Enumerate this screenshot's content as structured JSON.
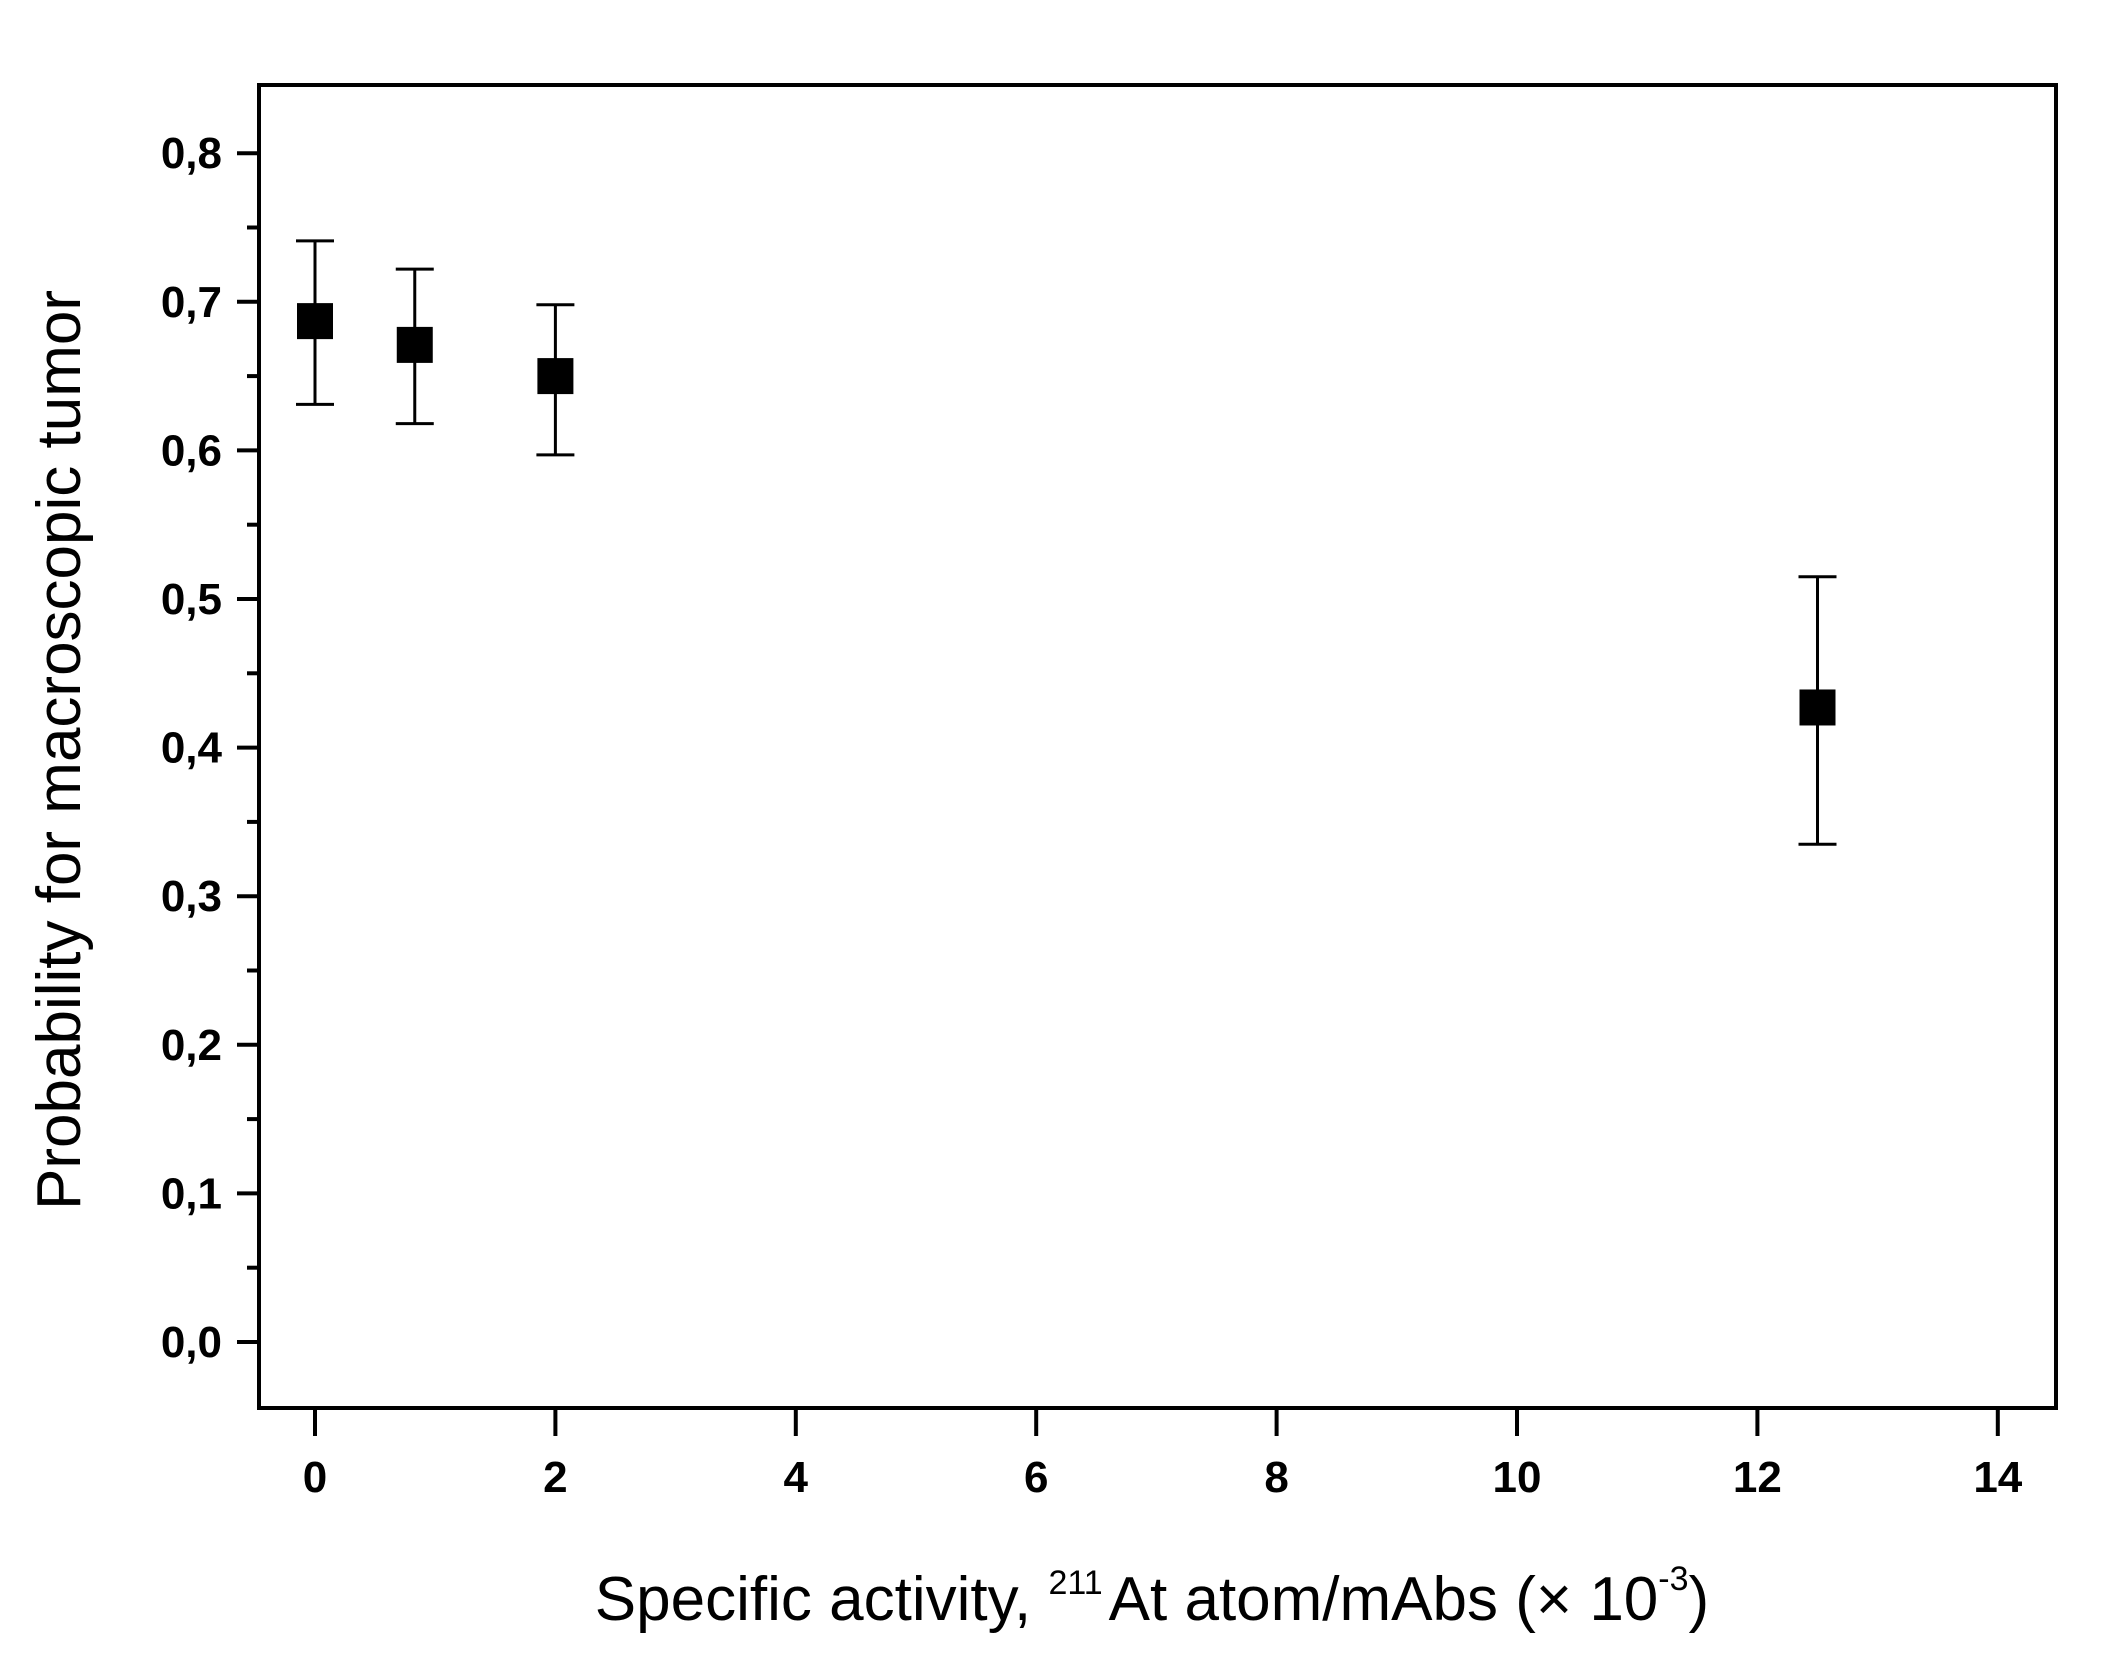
{
  "chart_data": {
    "type": "scatter",
    "title": "",
    "xlabel": "Specific activity, 211At atom/mAbs (× 10-3)",
    "xlabel_parts": {
      "prefix": "Specific activity, ",
      "superscript_isotope": "211",
      "middle": "At atom/mAbs (× 10",
      "superscript_exp": "-3",
      "suffix": ")"
    },
    "ylabel": "Probability for macroscopic tumor",
    "xlim": [
      -0.5,
      14.5
    ],
    "ylim": [
      -0.045,
      0.845
    ],
    "x_ticks": [
      0,
      2,
      4,
      6,
      8,
      10,
      12,
      14
    ],
    "x_tick_labels": [
      "0",
      "2",
      "4",
      "6",
      "8",
      "10",
      "12",
      "14"
    ],
    "y_ticks": [
      0.0,
      0.1,
      0.2,
      0.3,
      0.4,
      0.5,
      0.6,
      0.7,
      0.8
    ],
    "y_tick_labels": [
      "0,0",
      "0,1",
      "0,2",
      "0,3",
      "0,4",
      "0,5",
      "0,6",
      "0,7",
      "0,8"
    ],
    "y_minor_tick_step": 0.05,
    "grid": false,
    "legend": null,
    "marker": "filled-square",
    "marker_color": "#000000",
    "series": [
      {
        "name": "Probability",
        "points": [
          {
            "x": 0.0,
            "y": 0.687,
            "y_err_low": 0.631,
            "y_err_high": 0.741
          },
          {
            "x": 0.83,
            "y": 0.671,
            "y_err_low": 0.618,
            "y_err_high": 0.722
          },
          {
            "x": 2.0,
            "y": 0.65,
            "y_err_low": 0.597,
            "y_err_high": 0.698
          },
          {
            "x": 12.5,
            "y": 0.427,
            "y_err_low": 0.335,
            "y_err_high": 0.515
          }
        ]
      }
    ]
  }
}
